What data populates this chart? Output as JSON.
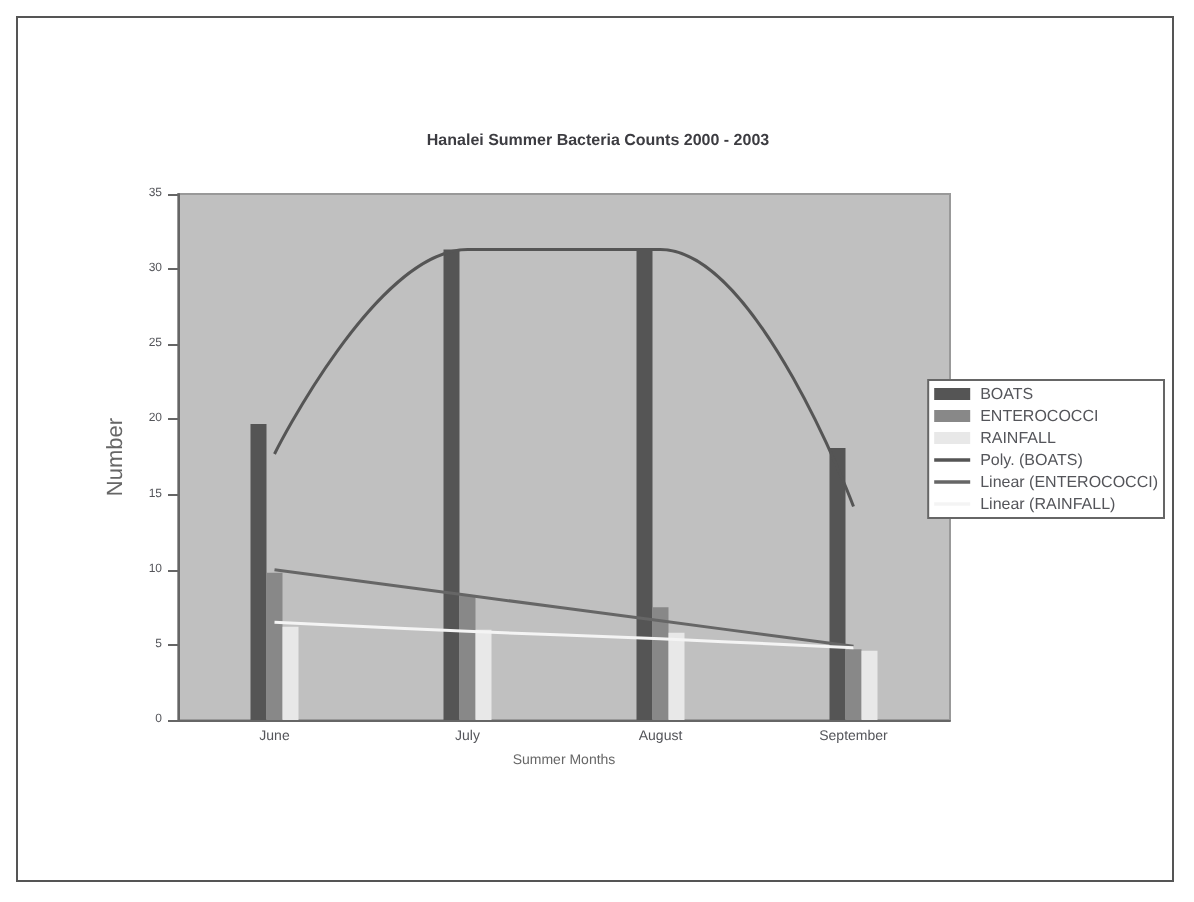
{
  "chart_data": {
    "type": "bar",
    "title": "Hanalei Summer Bacteria Counts 2000 - 2003",
    "xlabel": "Summer Months",
    "ylabel": "Number",
    "categories": [
      "June",
      "July",
      "August",
      "September"
    ],
    "series": [
      {
        "name": "BOATS",
        "color": "#555555",
        "values": [
          19.7,
          31.3,
          31.2,
          18.1
        ]
      },
      {
        "name": "ENTEROCOCCI",
        "color": "#888888",
        "values": [
          9.8,
          8.3,
          7.5,
          4.7
        ]
      },
      {
        "name": "RAINFALL",
        "color": "#e8e8e8",
        "values": [
          6.2,
          6.0,
          5.8,
          4.6
        ]
      },
      {
        "name": "Poly. (BOATS)",
        "type": "line",
        "color": "#555555",
        "values": [
          17.7,
          31.3,
          31.3,
          14.2
        ]
      },
      {
        "name": "Linear (ENTEROCOCCI)",
        "type": "line",
        "color": "#666666",
        "values": [
          10.0,
          8.3,
          6.6,
          4.9
        ]
      },
      {
        "name": "Linear (RAINFALL)",
        "type": "line",
        "color": "#f4f4f4",
        "values": [
          6.5,
          5.9,
          5.4,
          4.8
        ]
      }
    ],
    "ylim": [
      0,
      35
    ],
    "yticks": [
      0,
      5,
      10,
      15,
      20,
      25,
      30,
      35
    ],
    "grid": false,
    "legend": "right"
  }
}
